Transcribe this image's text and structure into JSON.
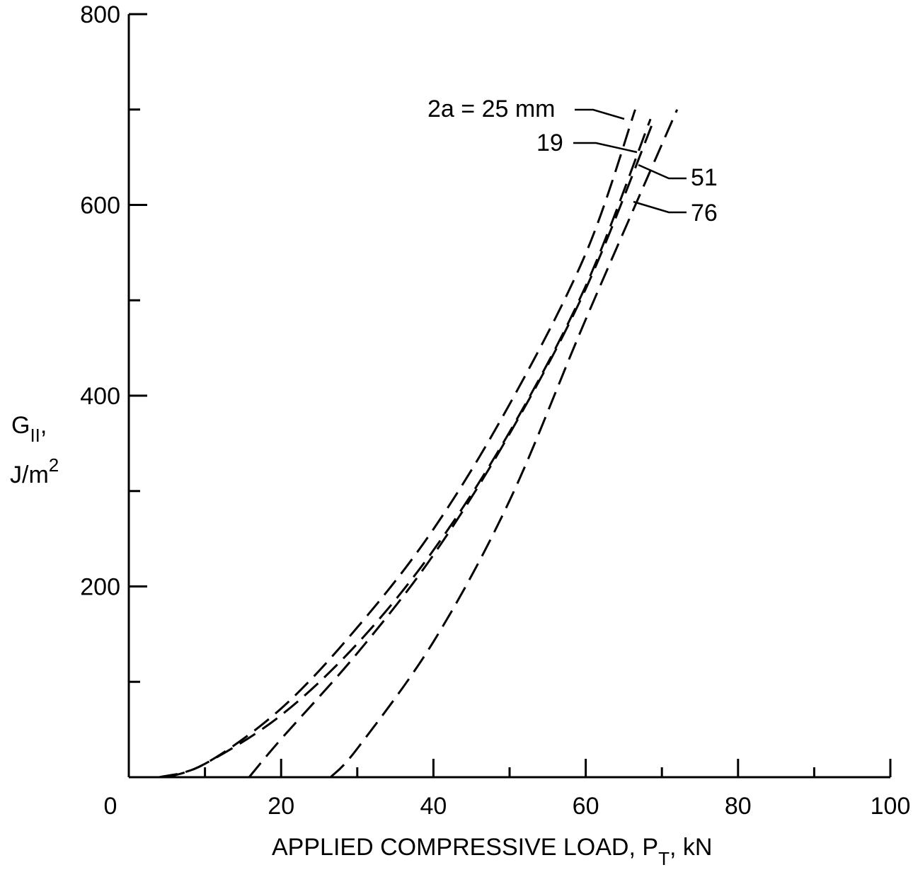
{
  "chart_data": {
    "type": "line",
    "x_axis": {
      "label_main": "APPLIED COMPRESSIVE LOAD, P",
      "label_sub": "T",
      "label_end": ", kN",
      "range": [
        0,
        100
      ],
      "tick_labels": [
        "0",
        "20",
        "40",
        "60",
        "80",
        "100"
      ],
      "major_ticks": [
        0,
        20,
        40,
        60,
        80,
        100
      ],
      "minor_ticks": [
        10,
        30,
        50,
        70,
        90
      ]
    },
    "y_axis": {
      "label_line1_main": "G",
      "label_line1_sub": "II",
      "label_line1_end": ",",
      "label_line2_main": "J/m",
      "label_line2_sup": "2",
      "range": [
        0,
        800
      ],
      "tick_labels": [
        "200",
        "400",
        "600",
        "800"
      ],
      "major_ticks": [
        200,
        400,
        600,
        800
      ],
      "minor_ticks": [
        100,
        300,
        500,
        700
      ]
    },
    "grid": false,
    "series": [
      {
        "name": "2a = 25 mm",
        "label_value": "2a = 25 mm",
        "points": [
          [
            4,
            0
          ],
          [
            10,
            14
          ],
          [
            20,
            72
          ],
          [
            30,
            157
          ],
          [
            40,
            260
          ],
          [
            50,
            391
          ],
          [
            60,
            549
          ],
          [
            66.5,
            700
          ]
        ]
      },
      {
        "name": "19",
        "label_value": "19",
        "points": [
          [
            5,
            0
          ],
          [
            10,
            14
          ],
          [
            20,
            65
          ],
          [
            30,
            140
          ],
          [
            40,
            238
          ],
          [
            50,
            362
          ],
          [
            60,
            515
          ],
          [
            68.5,
            690
          ]
        ]
      },
      {
        "name": "51",
        "label_value": "51",
        "points": [
          [
            15.8,
            0
          ],
          [
            20,
            40
          ],
          [
            30,
            130
          ],
          [
            40,
            233
          ],
          [
            50,
            360
          ],
          [
            60,
            512
          ],
          [
            69,
            690
          ]
        ]
      },
      {
        "name": "76",
        "label_value": "76",
        "points": [
          [
            26.5,
            0
          ],
          [
            30,
            30
          ],
          [
            40,
            142
          ],
          [
            50,
            290
          ],
          [
            60,
            480
          ],
          [
            72,
            700
          ]
        ]
      }
    ]
  }
}
